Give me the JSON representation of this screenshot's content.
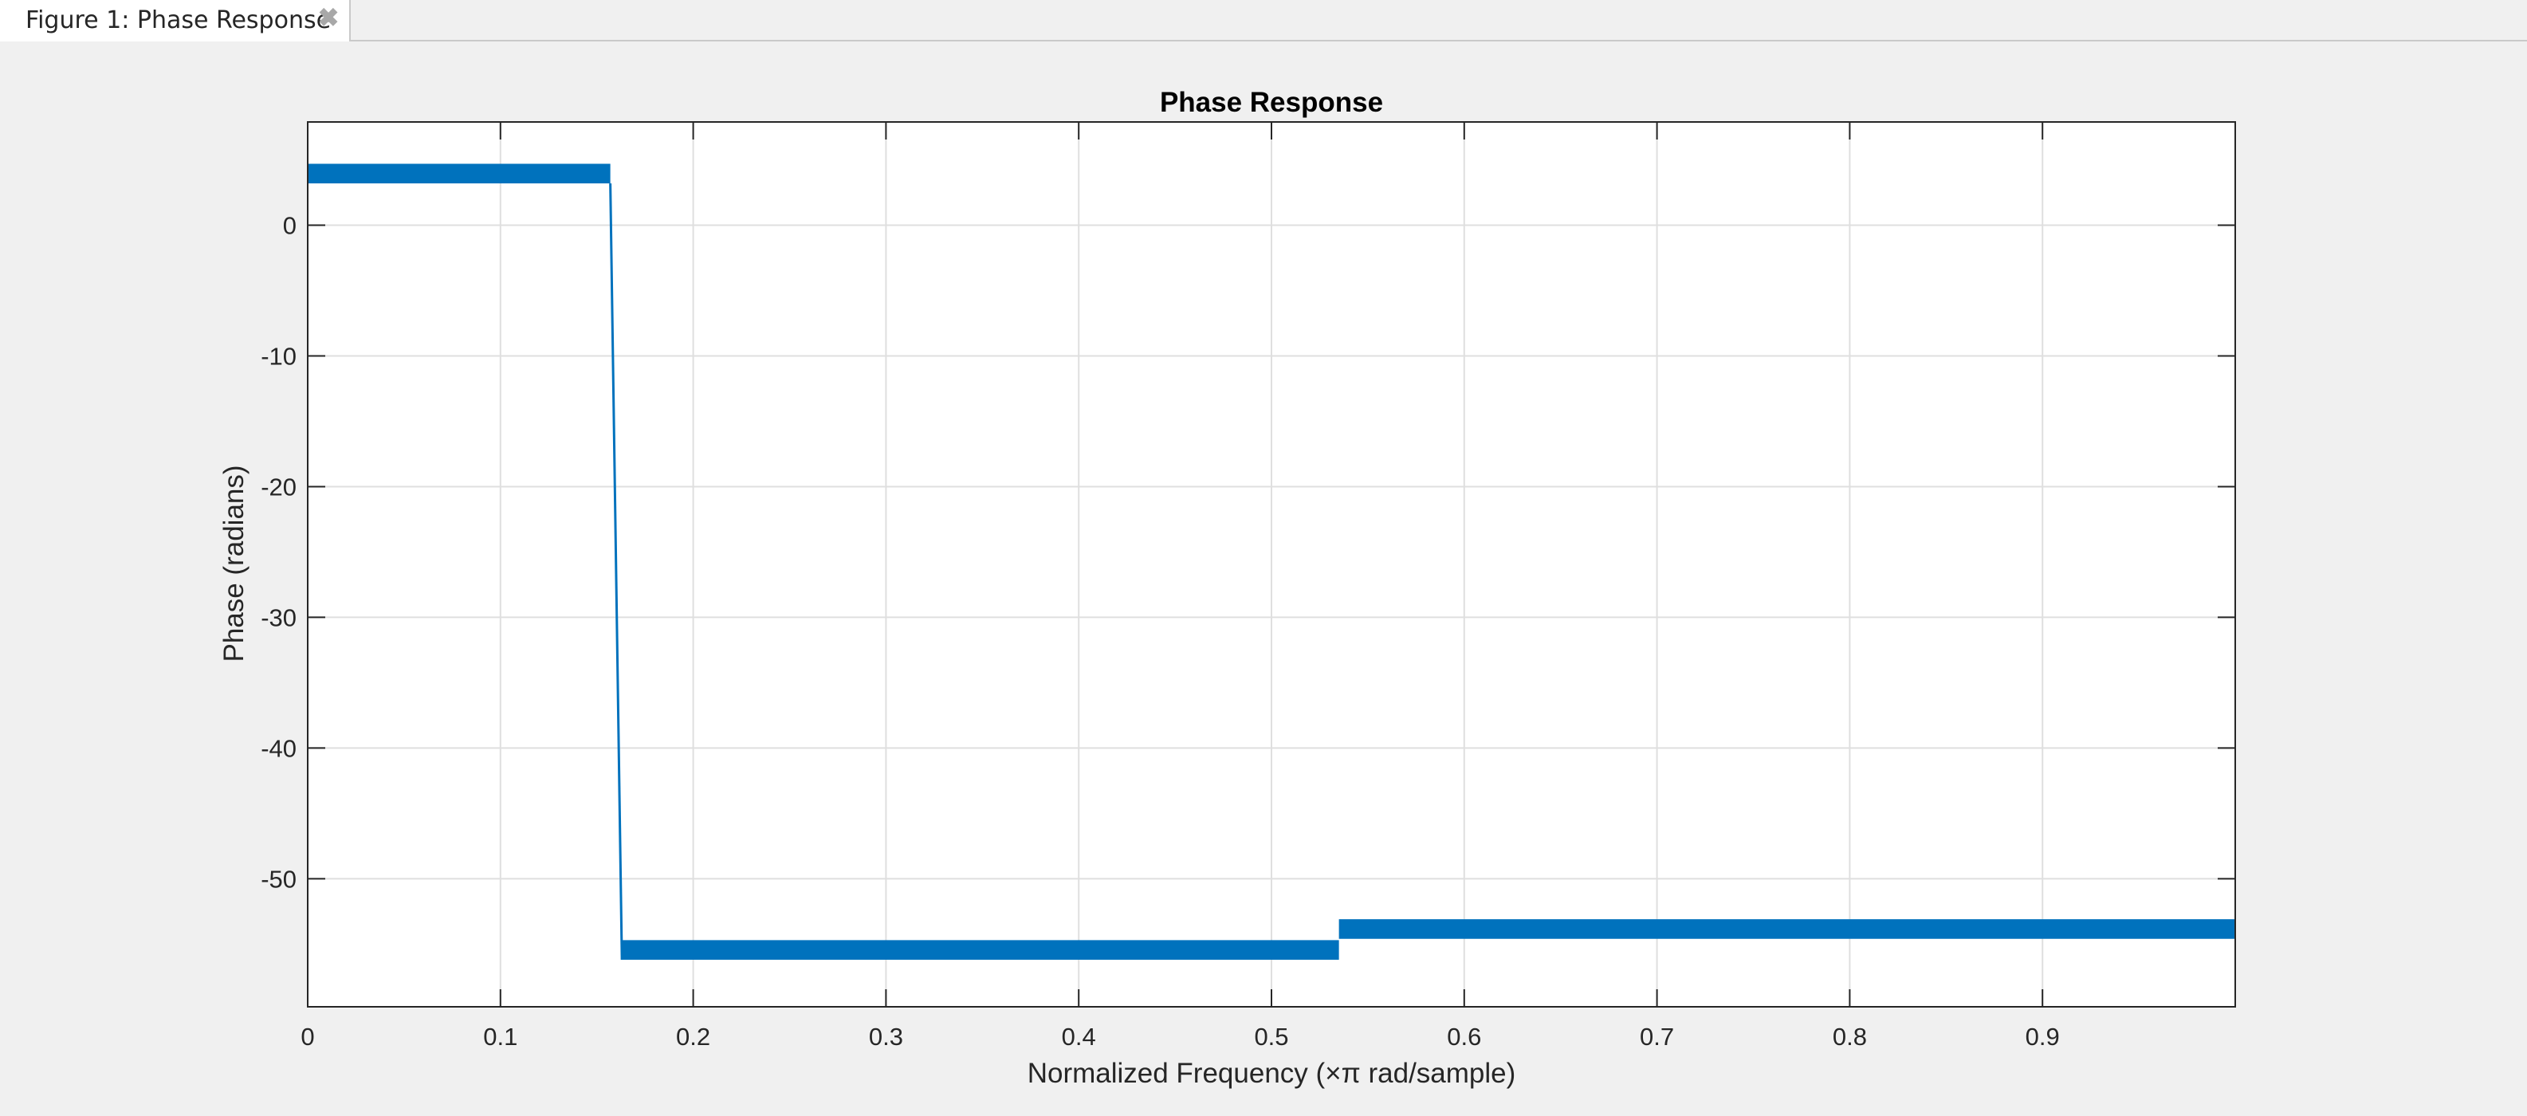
{
  "window": {
    "tab_label": "Figure 1: Phase Response",
    "close_glyph": "✖"
  },
  "chart_data": {
    "type": "line",
    "title": "Phase Response",
    "xlabel": "Normalized Frequency (×π rad/sample)",
    "ylabel": "Phase (radians)",
    "xlim": [
      0,
      1
    ],
    "ylim": [
      -59.8,
      7.9
    ],
    "grid": true,
    "x_ticks": [
      0,
      0.1,
      0.2,
      0.3,
      0.4,
      0.5,
      0.6,
      0.7,
      0.8,
      0.9
    ],
    "x_tick_labels": [
      "0",
      "0.1",
      "0.2",
      "0.3",
      "0.4",
      "0.5",
      "0.6",
      "0.7",
      "0.8",
      "0.9"
    ],
    "y_ticks": [
      0,
      -10,
      -20,
      -30,
      -40,
      -50
    ],
    "y_tick_labels": [
      "0",
      "-10",
      "-20",
      "-30",
      "-40",
      "-50"
    ],
    "color": "#0072bd",
    "series": [
      {
        "segments": [
          {
            "x": [
              0,
              0.157
            ],
            "y_low": 3.2,
            "y_high": 4.7,
            "style": "band"
          },
          {
            "x": [
              0.157,
              0.163
            ],
            "y": [
              3.2,
              -56.2
            ],
            "style": "line"
          },
          {
            "x": [
              0.163,
              0.535
            ],
            "y_low": -56.2,
            "y_high": -54.7,
            "style": "band"
          },
          {
            "x": [
              0.535,
              1
            ],
            "y_low": -54.6,
            "y_high": -53.1,
            "style": "band"
          }
        ]
      }
    ]
  }
}
